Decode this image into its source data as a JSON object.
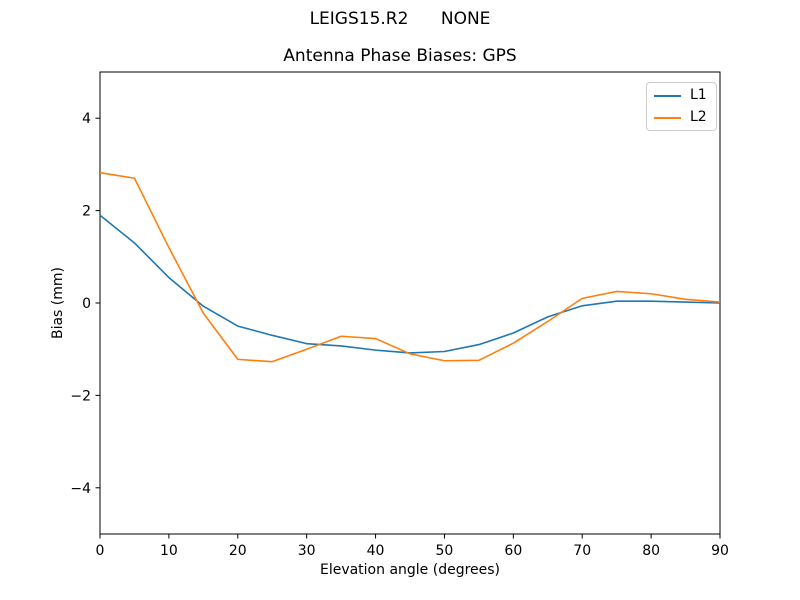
{
  "suptitle": "LEIGS15.R2      NONE",
  "chart_data": {
    "type": "line",
    "title": "Antenna Phase Biases: GPS",
    "xlabel": "Elevation angle (degrees)",
    "ylabel": "Bias (mm)",
    "x": [
      0,
      5,
      10,
      15,
      20,
      25,
      30,
      35,
      40,
      45,
      50,
      55,
      60,
      65,
      70,
      75,
      80,
      85,
      90
    ],
    "series": [
      {
        "name": "L1",
        "color": "#1f77b4",
        "values": [
          1.9,
          1.3,
          0.55,
          -0.07,
          -0.5,
          -0.7,
          -0.88,
          -0.93,
          -1.02,
          -1.08,
          -1.05,
          -0.9,
          -0.65,
          -0.3,
          -0.06,
          0.04,
          0.04,
          0.02,
          0.0
        ]
      },
      {
        "name": "L2",
        "color": "#ff7f0e",
        "values": [
          2.82,
          2.7,
          1.2,
          -0.22,
          -1.22,
          -1.27,
          -1.0,
          -0.72,
          -0.77,
          -1.1,
          -1.25,
          -1.24,
          -0.87,
          -0.4,
          0.1,
          0.25,
          0.2,
          0.08,
          0.02
        ]
      }
    ],
    "xlim": [
      0,
      90
    ],
    "ylim": [
      -5,
      5
    ],
    "xticks": [
      0,
      10,
      20,
      30,
      40,
      50,
      60,
      70,
      80,
      90
    ],
    "yticks": [
      -4,
      -2,
      0,
      2,
      4
    ],
    "grid": false,
    "legend_position": "upper right"
  }
}
